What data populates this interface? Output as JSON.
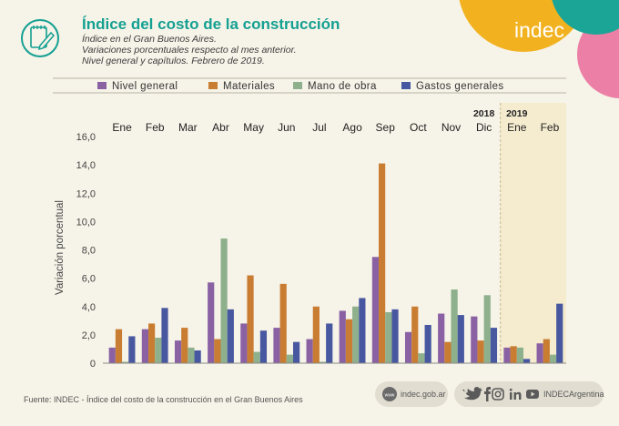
{
  "header": {
    "title": "Índice del costo de la construcción",
    "subtitle_lines": [
      "Índice en el Gran Buenos Aires.",
      "Variaciones porcentuales respecto al mes anterior.",
      "Nivel general y capítulos. Febrero de 2019."
    ]
  },
  "logo": {
    "text": "indec"
  },
  "footer": {
    "source": "Fuente: INDEC - Índice del costo de la construcción en el Gran Buenos Aires",
    "website": "indec.gob.ar",
    "handle": "INDECArgentina",
    "social_icons": [
      "twitter-icon",
      "facebook-icon",
      "instagram-icon",
      "linkedin-icon",
      "youtube-icon"
    ]
  },
  "chart_data": {
    "type": "bar",
    "title": "Índice del costo de la construcción",
    "ylabel": "Variación porcentual",
    "xlabel": "",
    "ylim": [
      0,
      16
    ],
    "yticks": [
      "0",
      "2,0",
      "4,0",
      "6,0",
      "8,0",
      "10,0",
      "12,0",
      "14,0",
      "16,0"
    ],
    "categories": [
      "Ene",
      "Feb",
      "Mar",
      "Abr",
      "May",
      "Jun",
      "Jul",
      "Ago",
      "Sep",
      "Oct",
      "Nov",
      "Dic",
      "Ene",
      "Feb"
    ],
    "year_labels": [
      {
        "label": "2018",
        "category_index": 11
      },
      {
        "label": "2019",
        "category_index": 12
      }
    ],
    "highlight_from_index": 12,
    "legend_position": "top",
    "series": [
      {
        "name": "Nivel general",
        "color": "#8a62a4",
        "values": [
          1.1,
          2.4,
          1.6,
          5.7,
          2.8,
          2.5,
          1.7,
          3.7,
          7.5,
          2.2,
          3.5,
          3.3,
          1.1,
          1.4
        ]
      },
      {
        "name": "Materiales",
        "color": "#c97d32",
        "values": [
          2.4,
          2.8,
          2.5,
          1.7,
          6.2,
          5.6,
          4.0,
          3.1,
          14.1,
          4.0,
          1.5,
          1.6,
          1.2,
          1.7
        ]
      },
      {
        "name": "Mano de obra",
        "color": "#8fb08c",
        "values": [
          0.1,
          1.8,
          1.1,
          8.8,
          0.8,
          0.6,
          0.1,
          4.0,
          3.6,
          0.7,
          5.2,
          4.8,
          1.1,
          0.6
        ]
      },
      {
        "name": "Gastos generales",
        "color": "#4858a0",
        "values": [
          1.9,
          3.9,
          0.9,
          3.8,
          2.3,
          1.5,
          2.8,
          4.6,
          3.8,
          2.7,
          3.4,
          2.5,
          0.3,
          4.2
        ]
      }
    ]
  }
}
